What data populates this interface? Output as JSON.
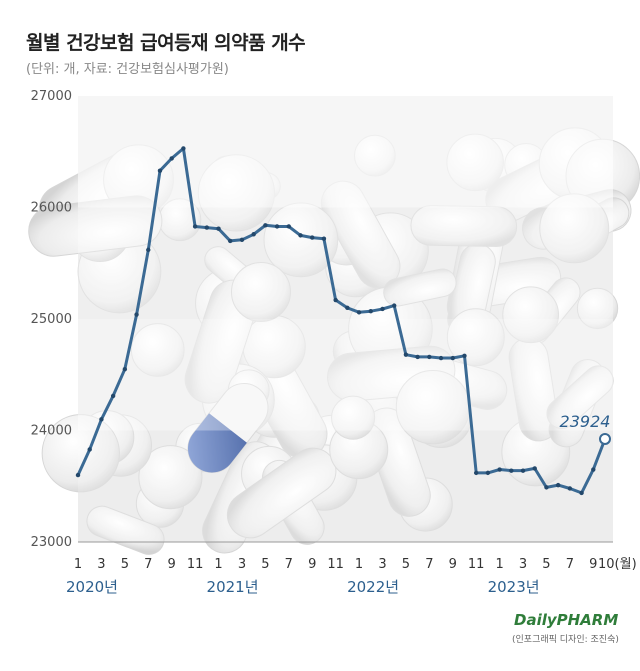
{
  "header": {
    "title": "월별 건강보험 급여등재 의약품 개수",
    "subtitle": "(단위: 개, 자료: 건강보험심사평가원)"
  },
  "footer": {
    "brand": "DailyPHARM",
    "credit": "(인포그래픽 디자인: 조진숙)"
  },
  "chart_data": {
    "type": "line",
    "title": "월별 건강보험 급여등재 의약품 개수",
    "ylim": [
      23000,
      27000
    ],
    "yticks": [
      "23000",
      "24000",
      "25000",
      "26000",
      "27000"
    ],
    "xticks": [
      "1",
      "3",
      "5",
      "7",
      "9",
      "11",
      "1",
      "3",
      "5",
      "7",
      "9",
      "11",
      "1",
      "3",
      "5",
      "7",
      "9",
      "11",
      "1",
      "3",
      "5",
      "7",
      "9",
      "10(월)"
    ],
    "years": [
      "2020년",
      "2021년",
      "2022년",
      "2023년"
    ],
    "end_label": "23924",
    "colors": {
      "line": "#3b6a94",
      "year": "#2c5f8e"
    },
    "series": [
      {
        "values": [
          23600,
          23830,
          24100,
          24310,
          24550,
          25040,
          25620,
          26330,
          26440,
          26530,
          25830,
          25820,
          25810,
          25700,
          25710,
          25760,
          25840,
          25830,
          25830,
          25750,
          25730,
          25720,
          25170,
          25100,
          25060,
          25070,
          25090,
          25120,
          24680,
          24660,
          24660,
          24650,
          24650,
          24670,
          23620,
          23620,
          23650,
          23640,
          23640,
          23660,
          23490,
          23510,
          23480,
          23440,
          23650,
          23924
        ]
      }
    ]
  }
}
